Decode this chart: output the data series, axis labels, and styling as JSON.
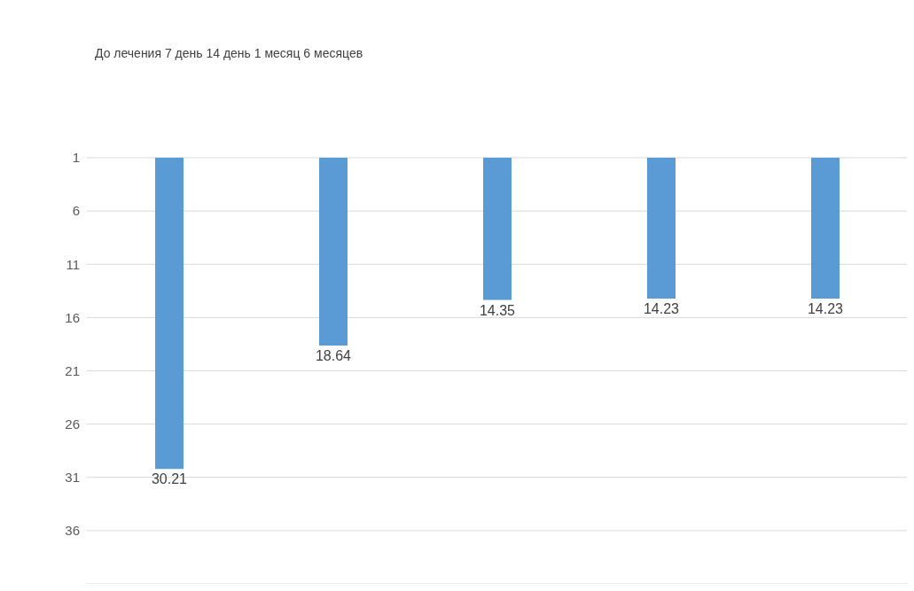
{
  "chart_data": {
    "type": "bar",
    "title": "До лечения 7 день 14 день 1 месяц 6 месяцев",
    "categories": [
      null,
      null,
      null,
      null,
      null
    ],
    "values": [
      30.21,
      18.64,
      14.35,
      14.23,
      14.23
    ],
    "color": "#5b9bd5",
    "ylim": [
      41,
      1
    ],
    "yticks": [
      1,
      6,
      11,
      16,
      21,
      26,
      31,
      36
    ],
    "grid": "y",
    "data_labels": true
  }
}
